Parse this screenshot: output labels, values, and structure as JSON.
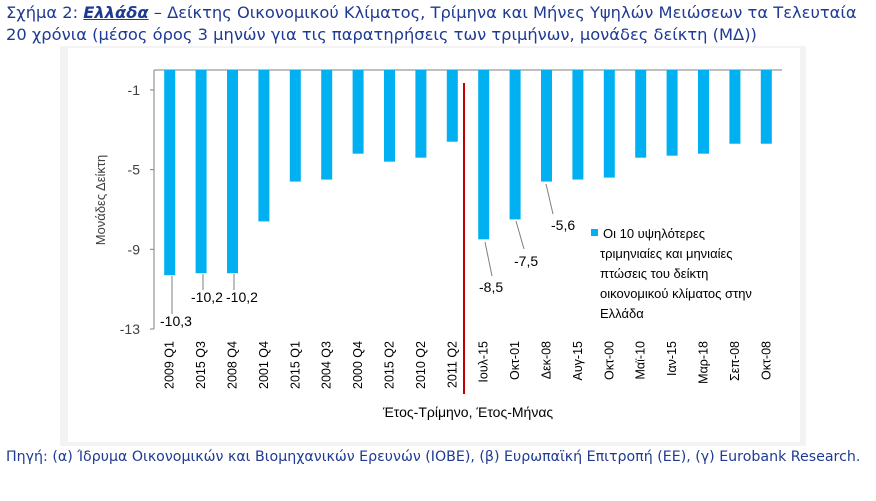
{
  "title": {
    "lead": "Σχήμα 2: ",
    "country": "Ελλάδα",
    "rest": " – Δείκτης Οικονομικού Κλίματος, Τρίμηνα και Μήνες Υψηλών Μειώσεων τα Τελευταία 20 χρόνια (μέσος όρος 3 μηνών για τις παρατηρήσεις των τριμήνων, μονάδες δείκτη (ΜΔ))"
  },
  "source": "Πηγή: (α) Ίδρυμα Οικονομικών και Βιομηχανικών Ερευνών (ΙΟΒΕ), (β) Ευρωπαϊκή Επιτροπή (ΕΕ), (γ) Eurobank Research.",
  "colors": {
    "bar": "#00b0f0",
    "divider": "#c00000",
    "text": "#404040",
    "title": "#1f3a93"
  },
  "chart_data": {
    "type": "bar",
    "categories": [
      "2009 Q1",
      "2015 Q3",
      "2008 Q4",
      "2001 Q4",
      "2015 Q1",
      "2004 Q3",
      "2000 Q4",
      "2015 Q2",
      "2010 Q2",
      "2011 Q2",
      "Ιουλ-15",
      "Οκτ-01",
      "Δεκ-08",
      "Αυγ-15",
      "Οκτ-00",
      "Μαϊ-10",
      "Ιαν-15",
      "Μαρ-18",
      "Σεπ-08",
      "Οκτ-08"
    ],
    "series": [
      {
        "name": "Οι 10 υψηλότερες τριμηνιαίες και μηνιαίες πτώσεις του δείκτη οικονομικού κλίματος στην Ελλάδα",
        "values": [
          -10.3,
          -10.2,
          -10.2,
          -7.6,
          -5.6,
          -5.5,
          -4.2,
          -4.6,
          -4.4,
          -3.6,
          -8.5,
          -7.5,
          -5.6,
          -5.5,
          -5.4,
          -4.4,
          -4.3,
          -4.2,
          -3.7,
          -3.7
        ]
      }
    ],
    "data_labels": [
      {
        "index": 0,
        "text": "-10,3"
      },
      {
        "index": 1,
        "text": "-10,2"
      },
      {
        "index": 2,
        "text": "-10,2"
      },
      {
        "index": 10,
        "text": "-8,5"
      },
      {
        "index": 11,
        "text": "-7,5"
      },
      {
        "index": 12,
        "text": "-5,6"
      }
    ],
    "xlabel": "Έτος-Τρίμηνο, Έτος-Μήνας",
    "ylabel": "Μονάδες Δείκτη",
    "ylim": [
      -13,
      0
    ],
    "yticks": [
      -1,
      -5,
      -9,
      -13
    ],
    "ytick_labels": [
      "-1",
      "-5",
      "-9",
      "-13"
    ],
    "divider_after_index": 9,
    "grid": false,
    "legend": "right"
  }
}
